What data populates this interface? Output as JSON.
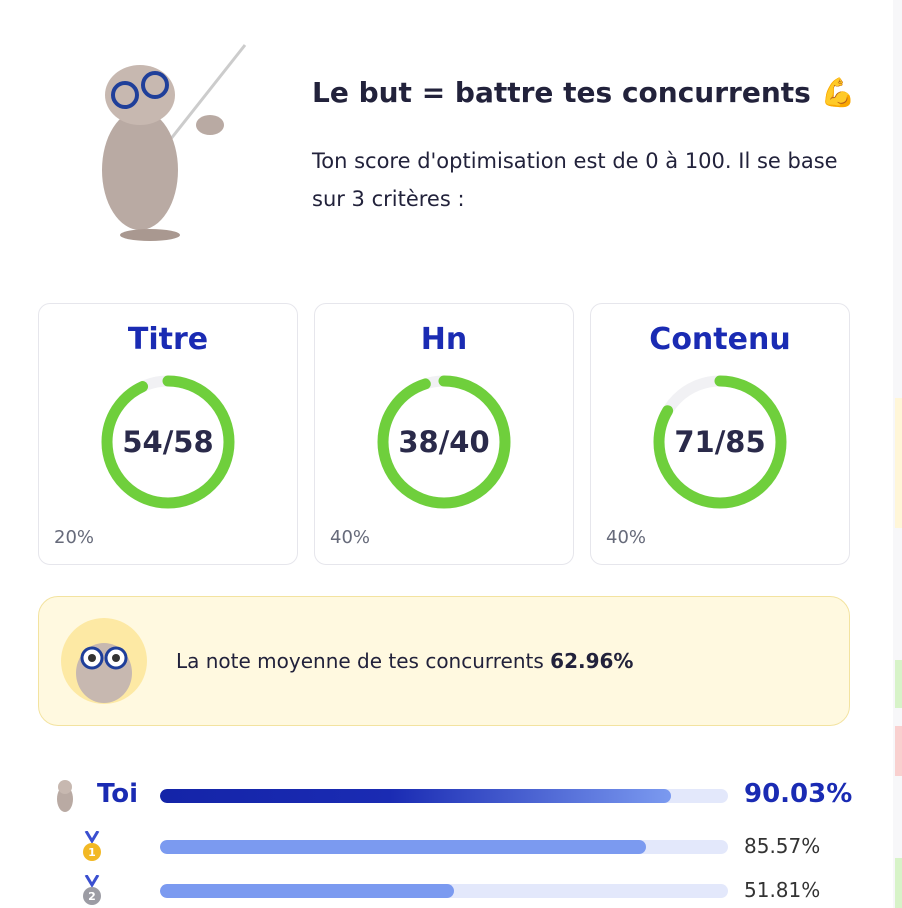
{
  "header": {
    "title": "Le but = battre tes concurrents 💪",
    "description": "Ton score d'optimisation est de 0 à 100. Il se base sur 3 critères :"
  },
  "cards": [
    {
      "title": "Titre",
      "score_label": "54/58",
      "score": 54,
      "max": 58,
      "weight": "20%"
    },
    {
      "title": "Hn",
      "score_label": "38/40",
      "score": 38,
      "max": 40,
      "weight": "40%"
    },
    {
      "title": "Contenu",
      "score_label": "71/85",
      "score": 71,
      "max": 85,
      "weight": "40%"
    }
  ],
  "average": {
    "text": "La note moyenne de tes concurrents",
    "value": "62.96%"
  },
  "ranking": [
    {
      "name": "Toi",
      "label": "90.03%",
      "value": 90.03
    },
    {
      "medal": "1",
      "label": "85.57%",
      "value": 85.57
    },
    {
      "medal": "2",
      "label": "51.81%",
      "value": 51.81
    }
  ]
}
